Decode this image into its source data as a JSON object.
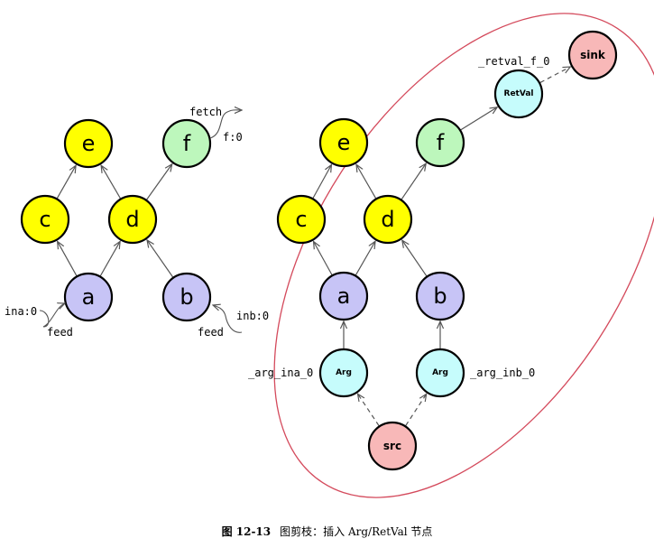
{
  "diagram": {
    "colors": {
      "yellow": "#ffff00",
      "purple": "#c7c4f6",
      "green": "#bdf7bc",
      "cyan": "#c6fcfc",
      "pink": "#f8b8b8",
      "node_stroke": "#000000",
      "edge": "#555555",
      "ellipse": "#d44a5c"
    },
    "left": {
      "nodes": [
        {
          "id": "e",
          "label": "e",
          "color": "yellow"
        },
        {
          "id": "c",
          "label": "c",
          "color": "yellow"
        },
        {
          "id": "d",
          "label": "d",
          "color": "yellow"
        },
        {
          "id": "f",
          "label": "f",
          "color": "green"
        },
        {
          "id": "a",
          "label": "a",
          "color": "purple"
        },
        {
          "id": "b",
          "label": "b",
          "color": "purple"
        }
      ],
      "edges": [
        {
          "from": "a",
          "to": "c"
        },
        {
          "from": "a",
          "to": "d"
        },
        {
          "from": "b",
          "to": "d"
        },
        {
          "from": "c",
          "to": "e"
        },
        {
          "from": "d",
          "to": "e"
        },
        {
          "from": "d",
          "to": "f"
        }
      ],
      "labels": {
        "fetch": "fetch",
        "f0": "f:0",
        "ina0": "ina:0",
        "feed_a": "feed",
        "inb0": "inb:0",
        "feed_b": "feed"
      }
    },
    "right": {
      "nodes": [
        {
          "id": "e",
          "label": "e",
          "color": "yellow"
        },
        {
          "id": "c",
          "label": "c",
          "color": "yellow"
        },
        {
          "id": "d",
          "label": "d",
          "color": "yellow"
        },
        {
          "id": "f",
          "label": "f",
          "color": "green"
        },
        {
          "id": "a",
          "label": "a",
          "color": "purple"
        },
        {
          "id": "b",
          "label": "b",
          "color": "purple"
        },
        {
          "id": "retval",
          "label": "RetVal",
          "color": "cyan"
        },
        {
          "id": "sink",
          "label": "sink",
          "color": "pink"
        },
        {
          "id": "arg_a",
          "label": "Arg",
          "color": "cyan"
        },
        {
          "id": "arg_b",
          "label": "Arg",
          "color": "cyan"
        },
        {
          "id": "src",
          "label": "src",
          "color": "pink"
        }
      ],
      "edges": [
        {
          "from": "a",
          "to": "c",
          "dashed": false
        },
        {
          "from": "a",
          "to": "d",
          "dashed": false
        },
        {
          "from": "b",
          "to": "d",
          "dashed": false
        },
        {
          "from": "c",
          "to": "e",
          "dashed": false
        },
        {
          "from": "d",
          "to": "e",
          "dashed": false
        },
        {
          "from": "d",
          "to": "f",
          "dashed": false
        },
        {
          "from": "f",
          "to": "retval",
          "dashed": false
        },
        {
          "from": "retval",
          "to": "sink",
          "dashed": true
        },
        {
          "from": "arg_a",
          "to": "a",
          "dashed": false
        },
        {
          "from": "arg_b",
          "to": "b",
          "dashed": false
        },
        {
          "from": "src",
          "to": "arg_a",
          "dashed": true
        },
        {
          "from": "src",
          "to": "arg_b",
          "dashed": true
        }
      ],
      "labels": {
        "retval_f_0": "_retval_f_0",
        "arg_ina_0": "_arg_ina_0",
        "arg_inb_0": "_arg_inb_0"
      }
    }
  },
  "caption": {
    "number": "图 12-13",
    "text": "图剪枝：插入 Arg/RetVal 节点"
  }
}
